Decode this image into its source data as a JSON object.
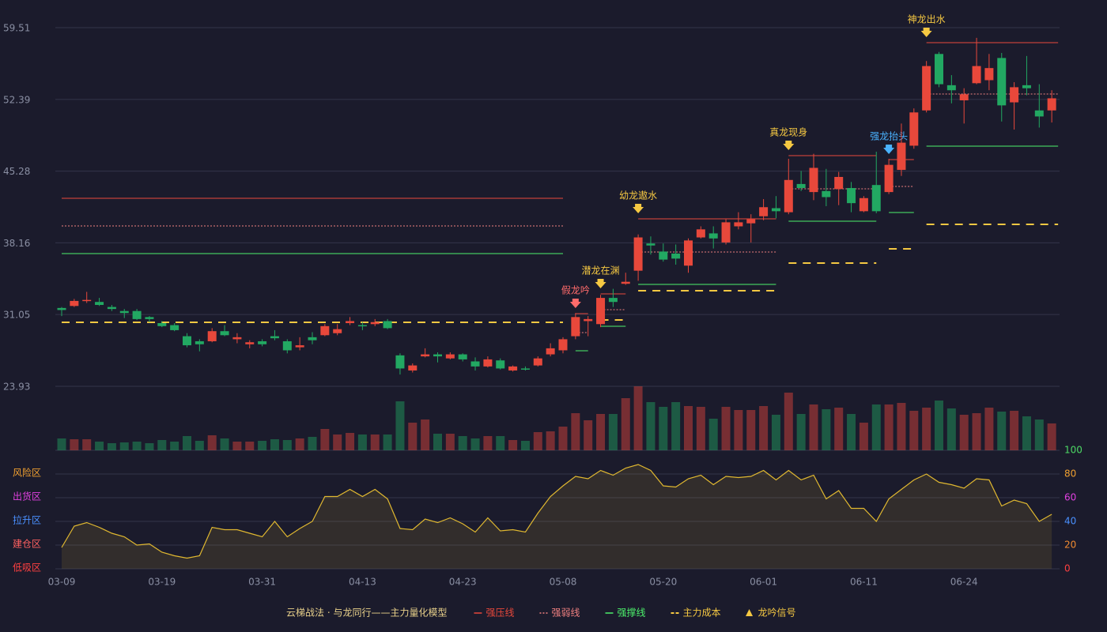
{
  "chart_data": {
    "type": "candlestick",
    "categories": [
      "03-09",
      null,
      null,
      null,
      null,
      null,
      null,
      null,
      "03-19",
      null,
      null,
      null,
      null,
      null,
      null,
      null,
      "03-31",
      null,
      null,
      null,
      null,
      null,
      null,
      null,
      "04-13",
      null,
      null,
      null,
      null,
      null,
      null,
      null,
      "04-23",
      null,
      null,
      null,
      null,
      null,
      null,
      null,
      "05-08",
      null,
      null,
      null,
      null,
      null,
      null,
      null,
      "05-20",
      null,
      null,
      null,
      null,
      null,
      null,
      null,
      "06-01",
      null,
      null,
      null,
      null,
      null,
      null,
      null,
      "06-11",
      null,
      null,
      null,
      null,
      null,
      null,
      null,
      "06-24",
      null,
      null,
      null,
      null,
      null,
      null,
      null
    ],
    "open": [
      31.7,
      31.9,
      32.4,
      32.3,
      31.8,
      31.4,
      31.4,
      30.8,
      30.2,
      30.0,
      28.9,
      28.4,
      28.4,
      29.4,
      28.6,
      28.1,
      28.4,
      28.9,
      28.4,
      27.8,
      28.8,
      29.0,
      29.2,
      30.2,
      30.0,
      30.1,
      30.4,
      27.0,
      25.5,
      26.9,
      27.1,
      26.7,
      27.1,
      26.4,
      25.9,
      26.5,
      25.5,
      25.7,
      26.0,
      27.1,
      27.5,
      28.9,
      30.4,
      30.1,
      32.7,
      34.1,
      35.4,
      38.1,
      37.3,
      37.1,
      35.9,
      38.7,
      39.1,
      38.2,
      39.8,
      40.1,
      40.8,
      41.6,
      41.2,
      44.0,
      43.2,
      43.3,
      43.5,
      43.6,
      41.3,
      43.9,
      43.2,
      45.4,
      47.8,
      51.3,
      56.9,
      53.8,
      52.3,
      54.0,
      54.3,
      56.5,
      52.1,
      53.8,
      51.3,
      51.3
    ],
    "high": [
      31.8,
      32.6,
      33.3,
      32.7,
      32.0,
      31.6,
      31.6,
      30.9,
      30.4,
      30.2,
      29.2,
      28.6,
      29.7,
      30.0,
      29.2,
      28.5,
      28.6,
      29.5,
      28.6,
      28.8,
      29.3,
      30.1,
      30.1,
      30.8,
      30.3,
      30.6,
      30.6,
      27.2,
      26.2,
      27.7,
      27.3,
      27.3,
      27.2,
      26.8,
      26.9,
      26.7,
      26.0,
      25.9,
      26.9,
      28.2,
      28.8,
      31.2,
      30.9,
      33.0,
      33.6,
      35.2,
      39.0,
      38.8,
      38.1,
      38.0,
      38.6,
      39.8,
      39.8,
      40.5,
      41.2,
      41.0,
      42.5,
      42.8,
      46.5,
      45.3,
      47.0,
      45.5,
      45.2,
      44.2,
      42.8,
      47.2,
      46.5,
      50.0,
      51.5,
      56.2,
      57.1,
      54.8,
      53.5,
      58.5,
      56.9,
      57.0,
      54.1,
      56.7,
      53.9,
      53.3
    ],
    "low": [
      30.9,
      31.8,
      32.2,
      31.9,
      31.4,
      30.7,
      30.5,
      30.3,
      29.8,
      29.4,
      27.8,
      27.4,
      28.3,
      28.9,
      28.2,
      27.7,
      27.9,
      28.5,
      27.2,
      27.5,
      28.1,
      28.9,
      29.0,
      30.0,
      29.5,
      29.9,
      29.6,
      25.1,
      25.3,
      26.8,
      26.3,
      26.6,
      26.4,
      25.5,
      25.8,
      25.6,
      25.4,
      25.5,
      25.9,
      26.9,
      27.2,
      28.6,
      28.9,
      29.8,
      31.8,
      34.0,
      34.4,
      37.0,
      36.3,
      36.0,
      35.2,
      38.6,
      37.6,
      38.0,
      39.5,
      38.2,
      40.4,
      40.6,
      41.0,
      43.3,
      42.4,
      41.8,
      41.9,
      41.2,
      41.2,
      41.1,
      43.0,
      44.8,
      47.5,
      51.1,
      53.6,
      52.0,
      50.0,
      53.9,
      53.3,
      50.2,
      49.4,
      52.8,
      49.6,
      50.1
    ],
    "close": [
      31.5,
      32.4,
      32.5,
      32.0,
      31.6,
      31.2,
      30.6,
      30.6,
      29.9,
      29.5,
      28.0,
      28.1,
      29.4,
      29.0,
      28.8,
      28.3,
      28.1,
      28.7,
      27.5,
      28.0,
      28.5,
      29.9,
      29.6,
      30.4,
      29.9,
      30.3,
      29.7,
      25.7,
      26.0,
      27.1,
      26.9,
      27.1,
      26.6,
      25.9,
      26.6,
      25.7,
      25.9,
      25.6,
      26.7,
      27.7,
      28.6,
      30.8,
      30.6,
      32.7,
      32.3,
      34.3,
      38.7,
      37.9,
      36.5,
      36.6,
      38.4,
      39.5,
      38.6,
      40.2,
      40.2,
      40.5,
      41.7,
      41.3,
      44.4,
      43.6,
      45.6,
      42.7,
      44.7,
      42.1,
      42.6,
      41.3,
      45.9,
      48.1,
      51.1,
      55.7,
      53.9,
      53.3,
      52.9,
      55.7,
      55.5,
      51.8,
      53.6,
      53.5,
      50.7,
      52.5
    ],
    "up_color": "#e8483b",
    "down_color": "#22a862",
    "ylim": [
      23.93,
      59.51
    ],
    "yticks": [
      23.93,
      31.05,
      38.16,
      45.28,
      52.39,
      59.51
    ],
    "grid": true,
    "volume": {
      "values": [
        15,
        14,
        14,
        11,
        9,
        10,
        11,
        9,
        13,
        11,
        18,
        12,
        19,
        15,
        11,
        11,
        12,
        14,
        13,
        15,
        17,
        27,
        20,
        22,
        20,
        20,
        20,
        62,
        35,
        39,
        21,
        21,
        18,
        15,
        18,
        18,
        13,
        12,
        23,
        24,
        30,
        47,
        38,
        46,
        46,
        66,
        81,
        61,
        55,
        61,
        56,
        55,
        40,
        55,
        51,
        51,
        56,
        45,
        73,
        46,
        58,
        52,
        54,
        46,
        35,
        58,
        58,
        60,
        50,
        54,
        63,
        53,
        45,
        47,
        54,
        49,
        50,
        43,
        39,
        34
      ],
      "ylim": [
        0,
        81
      ]
    },
    "zones": [
      {
        "from": 0,
        "to": 40,
        "resistance": 42.58,
        "pivot": 39.84,
        "support": 37.1,
        "cost": 30.28
      },
      {
        "from": 41,
        "to": 42,
        "resistance": 31.14,
        "pivot": 29.26,
        "support": 27.46,
        "cost": null,
        "signal": {
          "label": "假龙吟",
          "color": "#ff6b6b"
        }
      },
      {
        "from": 43,
        "to": 45,
        "resistance": 33.1,
        "pivot": 31.53,
        "support": 29.89,
        "cost": 30.51,
        "signal": {
          "label": "潜龙在渊",
          "color": "#f5c842"
        }
      },
      {
        "from": 46,
        "to": 57,
        "resistance": 40.54,
        "pivot": 37.25,
        "support": 34.04,
        "cost": 33.41,
        "signal": {
          "label": "幼龙遨水",
          "color": "#f5c842"
        }
      },
      {
        "from": 58,
        "to": 65,
        "resistance": 46.81,
        "pivot": 43.52,
        "support": 40.31,
        "cost": 36.16,
        "signal": {
          "label": "真龙现身",
          "color": "#f5c842"
        }
      },
      {
        "from": 66,
        "to": 68,
        "resistance": 46.42,
        "pivot": 43.76,
        "support": 41.17,
        "cost": 37.57,
        "signal": {
          "label": "强龙抬头",
          "color": "#4ab3ff"
        }
      },
      {
        "from": 69,
        "to": 79,
        "resistance": 58.02,
        "pivot": 52.93,
        "support": 47.75,
        "cost": 40.0,
        "signal": {
          "label": "神龙出水",
          "color": "#f5c842"
        }
      }
    ],
    "indicator": {
      "values": [
        18,
        36,
        39,
        35,
        30,
        27,
        20,
        21,
        14,
        11,
        9,
        11,
        35,
        33,
        33,
        30,
        27,
        40,
        27,
        34,
        40,
        61,
        61,
        67,
        61,
        67,
        59,
        34,
        33,
        42,
        39,
        43,
        38,
        31,
        43,
        32,
        33,
        31,
        47,
        61,
        70,
        78,
        76,
        83,
        79,
        85,
        88,
        83,
        70,
        69,
        76,
        79,
        71,
        78,
        77,
        78,
        83,
        75,
        83,
        75,
        79,
        59,
        66,
        51,
        51,
        40,
        59,
        67,
        75,
        80,
        73,
        71,
        68,
        76,
        75,
        53,
        58,
        55,
        40,
        46
      ],
      "color": "#e0b830",
      "ylim": [
        0,
        100
      ],
      "yticks": [
        0,
        20,
        40,
        60,
        80,
        100
      ],
      "ytick_colors": [
        "#ff4040",
        "#f08a30",
        "#4a90ff",
        "#e040e0",
        "#f0a030",
        "#4cd964"
      ],
      "bands": [
        {
          "value": 80,
          "label": "风险区",
          "color": "#f0a030"
        },
        {
          "value": 60,
          "label": "出货区",
          "color": "#e040e0"
        },
        {
          "value": 40,
          "label": "拉升区",
          "color": "#4a90ff"
        },
        {
          "value": 20,
          "label": "建仓区",
          "color": "#ff6060"
        },
        {
          "value": 0,
          "label": "低吸区",
          "color": "#ff4040"
        }
      ]
    },
    "legend": {
      "title": "云梯战法 · 与龙同行——主力量化模型",
      "items": [
        {
          "label": "强压线",
          "color": "#e8483b",
          "style": "solid"
        },
        {
          "label": "强弱线",
          "color": "#f08080",
          "style": "dotted"
        },
        {
          "label": "强撑线",
          "color": "#4cf06b",
          "style": "solid"
        },
        {
          "label": "主力成本",
          "color": "#f5c842",
          "style": "dashed"
        },
        {
          "label": "龙吟信号",
          "color": "#f5c842",
          "style": "triangle"
        }
      ]
    }
  }
}
